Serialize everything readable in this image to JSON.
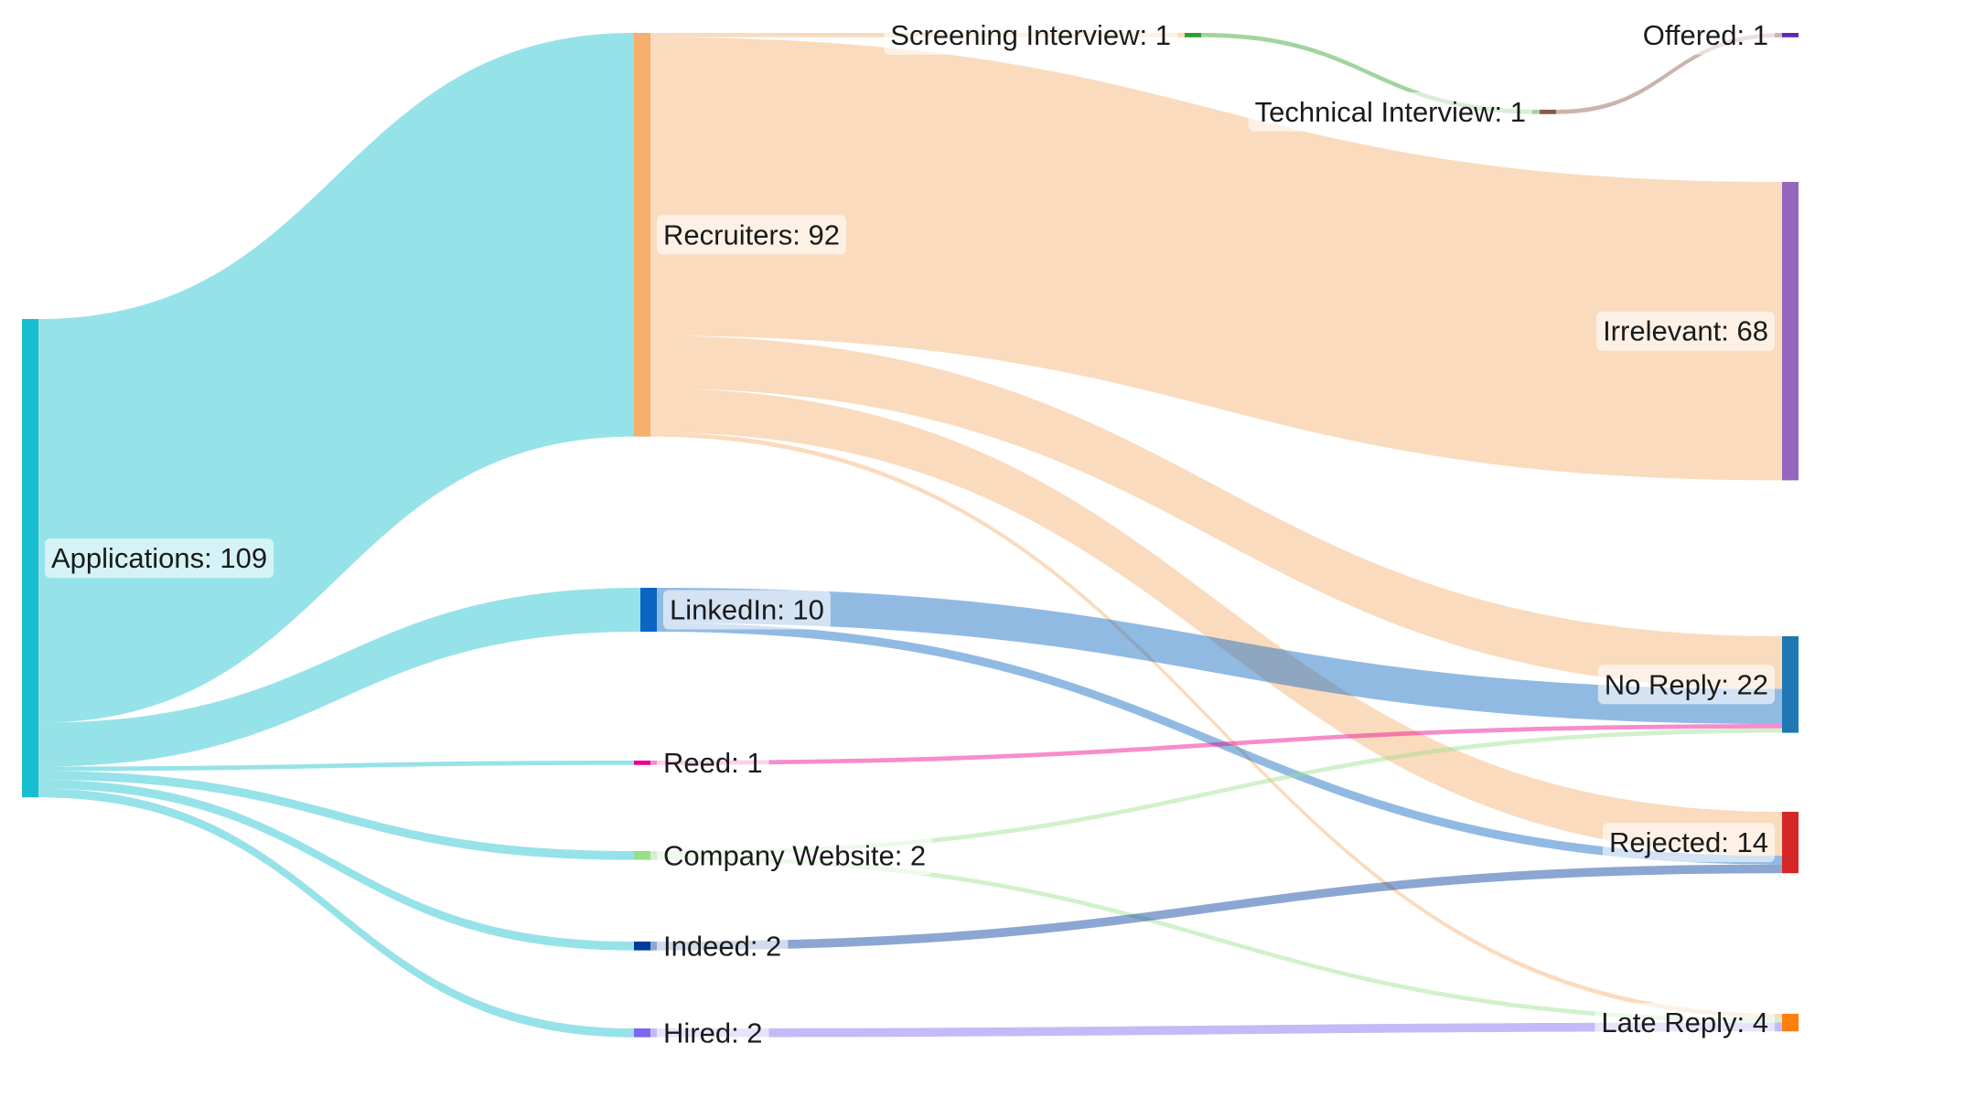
{
  "chart_data": {
    "type": "sankey",
    "title": "",
    "nodes": [
      {
        "id": "applications",
        "label": "Applications: 109",
        "value": 109,
        "color": "#17becf"
      },
      {
        "id": "recruiters",
        "label": "Recruiters: 92",
        "value": 92,
        "color": "#f4b06c"
      },
      {
        "id": "linkedin",
        "label": "LinkedIn: 10",
        "value": 10,
        "color": "#0a66c2"
      },
      {
        "id": "reed",
        "label": "Reed: 1",
        "value": 1,
        "color": "#ec008c"
      },
      {
        "id": "company_website",
        "label": "Company Website: 2",
        "value": 2,
        "color": "#98df8a"
      },
      {
        "id": "indeed",
        "label": "Indeed: 2",
        "value": 2,
        "color": "#003a9b"
      },
      {
        "id": "hired",
        "label": "Hired: 2",
        "value": 2,
        "color": "#7b68ee"
      },
      {
        "id": "screening",
        "label": "Screening Interview: 1",
        "value": 1,
        "color": "#2ca02c"
      },
      {
        "id": "technical",
        "label": "Technical Interview: 1",
        "value": 1,
        "color": "#8c564b"
      },
      {
        "id": "offered",
        "label": "Offered: 1",
        "value": 1,
        "color": "#5b2ab5"
      },
      {
        "id": "irrelevant",
        "label": "Irrelevant: 68",
        "value": 68,
        "color": "#9467bd"
      },
      {
        "id": "no_reply",
        "label": "No Reply: 22",
        "value": 22,
        "color": "#1f77b4"
      },
      {
        "id": "rejected",
        "label": "Rejected: 14",
        "value": 14,
        "color": "#d62728"
      },
      {
        "id": "late_reply",
        "label": "Late Reply: 4",
        "value": 4,
        "color": "#ff7f0e"
      }
    ],
    "links": [
      {
        "source": "applications",
        "target": "recruiters",
        "value": 92
      },
      {
        "source": "applications",
        "target": "linkedin",
        "value": 10
      },
      {
        "source": "applications",
        "target": "reed",
        "value": 1
      },
      {
        "source": "applications",
        "target": "company_website",
        "value": 2
      },
      {
        "source": "applications",
        "target": "indeed",
        "value": 2
      },
      {
        "source": "applications",
        "target": "hired",
        "value": 2
      },
      {
        "source": "recruiters",
        "target": "screening",
        "value": 1
      },
      {
        "source": "recruiters",
        "target": "irrelevant",
        "value": 68
      },
      {
        "source": "recruiters",
        "target": "no_reply",
        "value": 12
      },
      {
        "source": "recruiters",
        "target": "rejected",
        "value": 10
      },
      {
        "source": "recruiters",
        "target": "late_reply",
        "value": 1
      },
      {
        "source": "linkedin",
        "target": "no_reply",
        "value": 8
      },
      {
        "source": "linkedin",
        "target": "rejected",
        "value": 2
      },
      {
        "source": "reed",
        "target": "no_reply",
        "value": 1
      },
      {
        "source": "company_website",
        "target": "no_reply",
        "value": 1
      },
      {
        "source": "company_website",
        "target": "late_reply",
        "value": 1
      },
      {
        "source": "indeed",
        "target": "rejected",
        "value": 2
      },
      {
        "source": "hired",
        "target": "late_reply",
        "value": 2
      },
      {
        "source": "screening",
        "target": "technical",
        "value": 1
      },
      {
        "source": "technical",
        "target": "offered",
        "value": 1
      }
    ]
  }
}
